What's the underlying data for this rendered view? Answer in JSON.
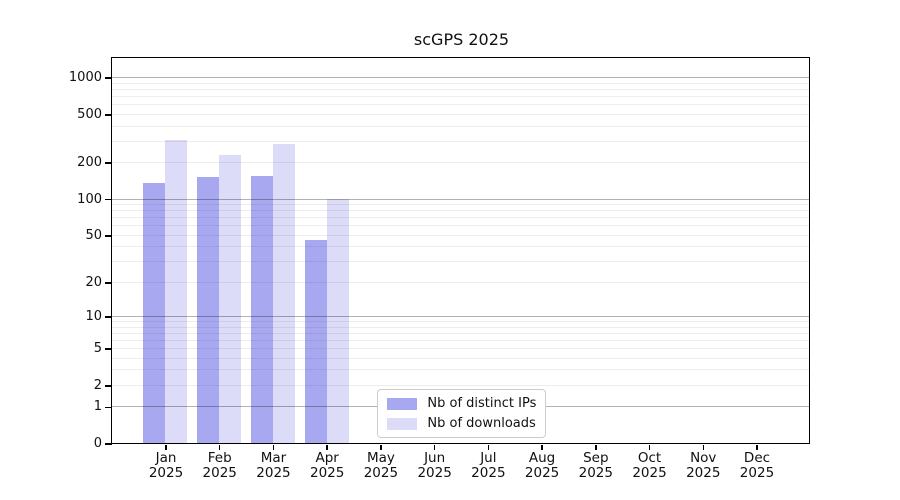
{
  "chart_data": {
    "type": "bar",
    "title": "scGPS 2025",
    "year_label": "2025",
    "categories": [
      "Jan",
      "Feb",
      "Mar",
      "Apr",
      "May",
      "Jun",
      "Jul",
      "Aug",
      "Sep",
      "Oct",
      "Nov",
      "Dec"
    ],
    "series": [
      {
        "name": "Nb of distinct IPs",
        "color": "#a8a8f0",
        "values": [
          137,
          152,
          154,
          46,
          null,
          null,
          null,
          null,
          null,
          null,
          null,
          null
        ]
      },
      {
        "name": "Nb of downloads",
        "color": "#dcdcf8",
        "values": [
          306,
          232,
          286,
          100,
          null,
          null,
          null,
          null,
          null,
          null,
          null,
          null
        ]
      }
    ],
    "y_ticks": [
      0,
      1,
      2,
      5,
      10,
      20,
      50,
      100,
      200,
      500,
      1000
    ],
    "scale": "log1p",
    "ylim": [
      0,
      1450
    ],
    "grid": {
      "major": [
        1,
        10,
        100,
        1000
      ],
      "minor_decades": [
        1,
        10,
        100
      ],
      "minor_per_decade": [
        2,
        3,
        4,
        5,
        6,
        7,
        8,
        9
      ]
    },
    "legend_position": "lower center"
  }
}
